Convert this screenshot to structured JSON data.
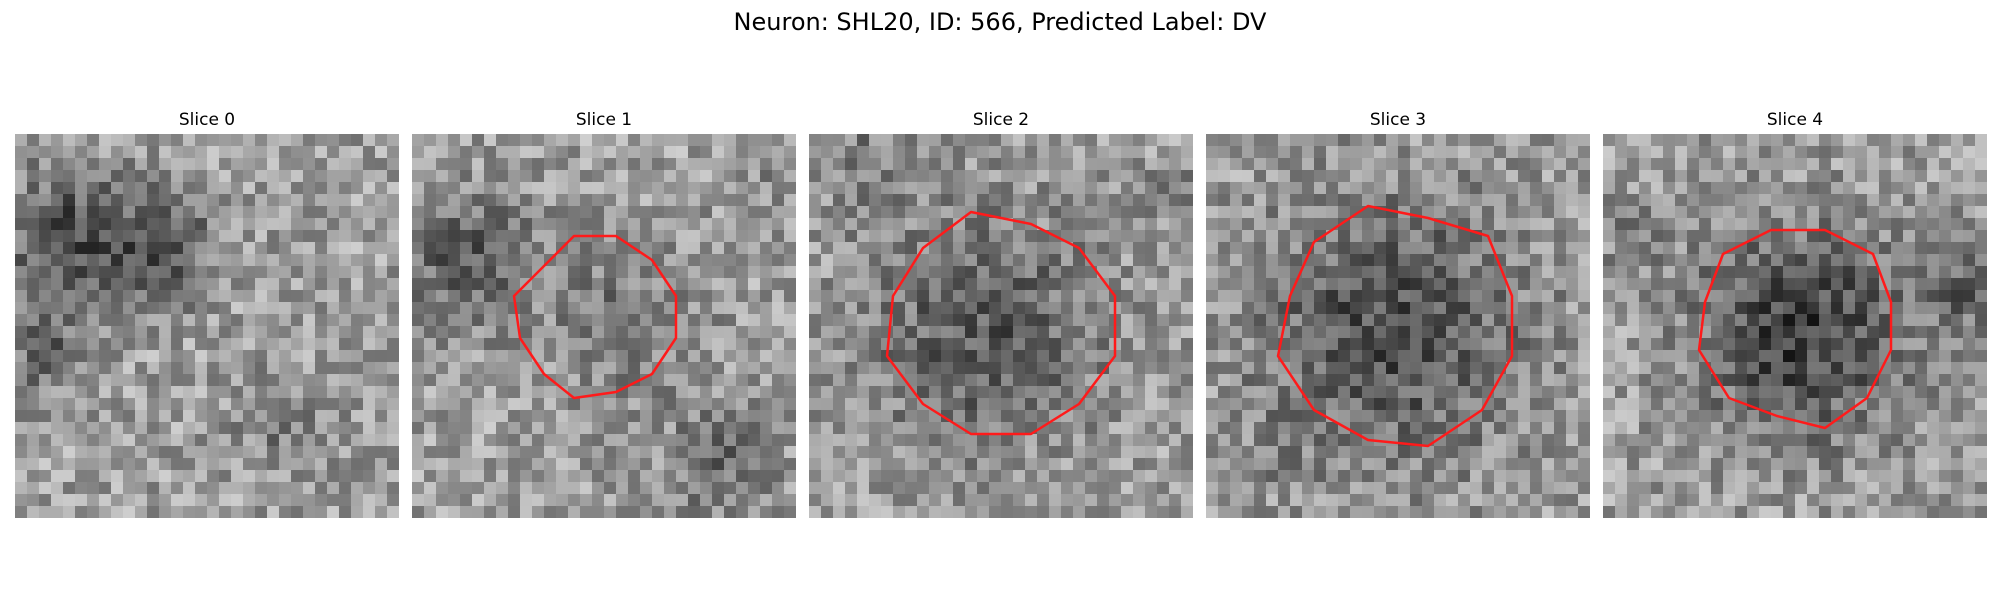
{
  "figure": {
    "title": "Neuron: SHL20, ID: 566, Predicted Label: DV"
  },
  "panels": [
    {
      "title": "Slice 0",
      "has_contour": false
    },
    {
      "title": "Slice 1",
      "has_contour": true
    },
    {
      "title": "Slice 2",
      "has_contour": true
    },
    {
      "title": "Slice 3",
      "has_contour": true
    },
    {
      "title": "Slice 4",
      "has_contour": true
    }
  ],
  "colors": {
    "contour": "#ff1a1a",
    "background": "#ffffff"
  }
}
